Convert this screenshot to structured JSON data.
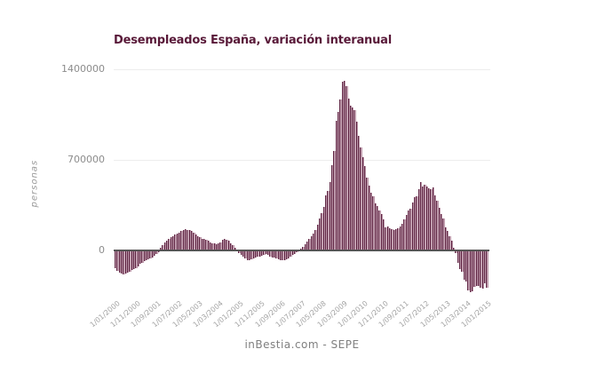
{
  "chart": {
    "title": "Desempleados España, variación interanual",
    "y_axis_title": "personas",
    "footer": "inBestia.com - SEPE",
    "colors": {
      "title": "#591a39",
      "bar_fill": "#c09dae",
      "bar_stroke": "#5e2342",
      "gridline": "#ededed",
      "zero_line": "#555555",
      "axis_text": "#8c8c8c"
    }
  },
  "chart_data": {
    "type": "bar",
    "title": "Desempleados España, variación interanual",
    "xlabel": "",
    "ylabel": "personas",
    "source_caption": "inBestia.com - SEPE",
    "frequency": "monthly",
    "x_start": "1/01/2000",
    "x_end": "1/01/2015",
    "x_tick_interval_months": 10,
    "x_tick_labels": [
      "1/01/2000",
      "1/11/2000",
      "1/09/2001",
      "1/07/2002",
      "1/05/2003",
      "1/03/2004",
      "1/01/2005",
      "1/11/2005",
      "1/09/2006",
      "1/07/2007",
      "1/05/2008",
      "1/03/2009",
      "1/01/2010",
      "1/11/2010",
      "1/09/2011",
      "1/07/2012",
      "1/05/2013",
      "1/03/2014",
      "1/01/2015"
    ],
    "y_ticks": [
      0,
      700000,
      1400000
    ],
    "ylim": [
      -400000,
      1400000
    ],
    "grid": "horizontal",
    "legend": "none",
    "values": [
      -137000,
      -158000,
      -172000,
      -181000,
      -184000,
      -178000,
      -170000,
      -161000,
      -152000,
      -144000,
      -136000,
      -120000,
      -105000,
      -95000,
      -85000,
      -75000,
      -68000,
      -60000,
      -52000,
      -42000,
      -30000,
      -15000,
      18000,
      40000,
      60000,
      75000,
      88000,
      100000,
      112000,
      120000,
      128000,
      135000,
      148000,
      158000,
      165000,
      155000,
      160000,
      152000,
      140000,
      126000,
      112000,
      100000,
      92000,
      86000,
      80000,
      72000,
      65000,
      58000,
      52000,
      48000,
      55000,
      65000,
      80000,
      90000,
      84000,
      72000,
      56000,
      40000,
      22000,
      5000,
      -18000,
      -35000,
      -50000,
      -62000,
      -72000,
      -78000,
      -70000,
      -62000,
      -56000,
      -50000,
      -45000,
      -40000,
      -34000,
      -30000,
      -36000,
      -45000,
      -52000,
      -58000,
      -64000,
      -68000,
      -72000,
      -75000,
      -73000,
      -68000,
      -60000,
      -48000,
      -36000,
      -24000,
      -12000,
      2000,
      14000,
      30000,
      48000,
      68000,
      88000,
      107000,
      130000,
      158000,
      200000,
      245000,
      288000,
      335000,
      425000,
      460000,
      525000,
      660000,
      770000,
      1000000,
      1066000,
      1167000,
      1304000,
      1306000,
      1267000,
      1174000,
      1117000,
      1099000,
      1084000,
      990000,
      880000,
      795000,
      721000,
      649000,
      561000,
      498000,
      446000,
      417000,
      364000,
      341000,
      308000,
      278000,
      241000,
      176000,
      183000,
      169000,
      167000,
      160000,
      165000,
      172000,
      185000,
      205000,
      240000,
      275000,
      310000,
      322000,
      369000,
      413000,
      417000,
      475000,
      524000,
      493000,
      508000,
      495000,
      479000,
      473000,
      487000,
      426000,
      381000,
      328000,
      284000,
      245000,
      177000,
      148000,
      111000,
      73000,
      19000,
      -22000,
      -99000,
      -147000,
      -166000,
      -228000,
      -239000,
      -305000,
      -319000,
      -314000,
      -279000,
      -271000,
      -277000,
      -285000,
      -297000,
      -254000,
      -289000
    ]
  }
}
